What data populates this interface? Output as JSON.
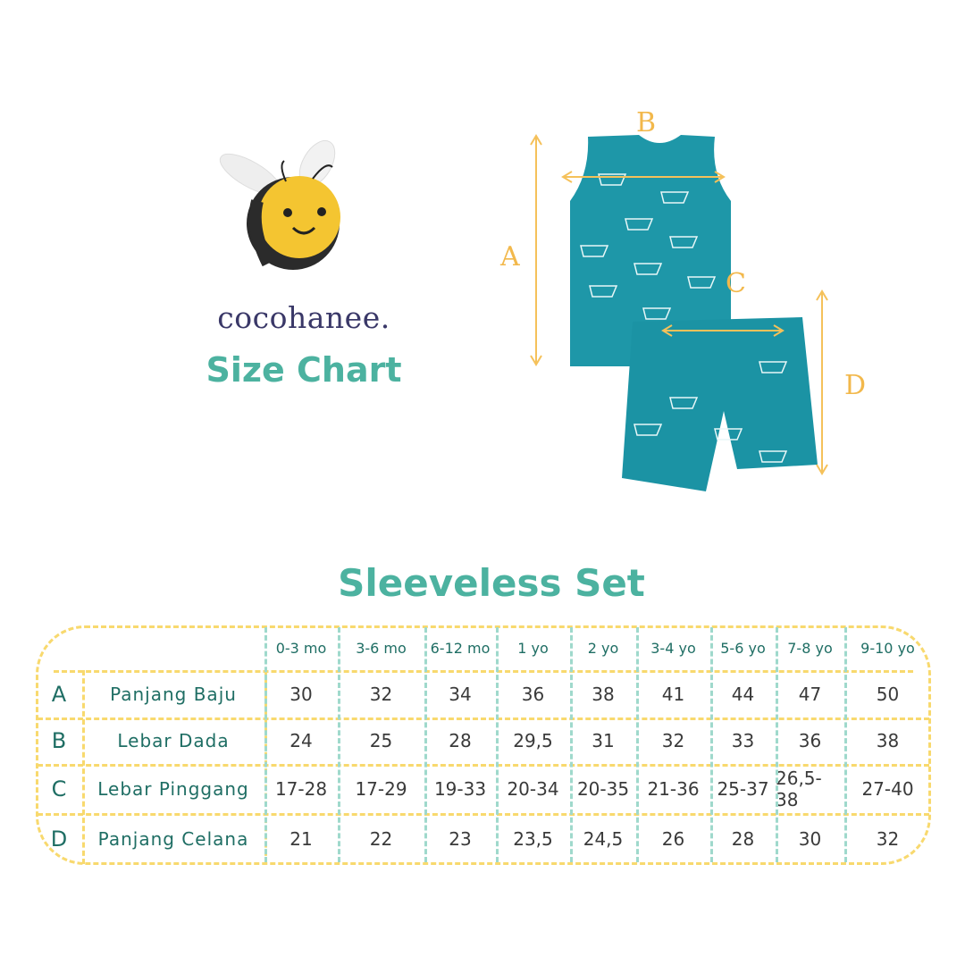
{
  "brand": {
    "logo_text": "cocohanee.",
    "subtitle": "Size Chart"
  },
  "diagram": {
    "labels": {
      "a": "A",
      "b": "B",
      "c": "C",
      "d": "D"
    },
    "garment_color": "#1e97a8",
    "arrow_color": "#f5c15a"
  },
  "table": {
    "title": "Sleeveless Set",
    "sizes": [
      "0-3 mo",
      "3-6 mo",
      "6-12 mo",
      "1 yo",
      "2 yo",
      "3-4 yo",
      "5-6 yo",
      "7-8 yo",
      "9-10 yo"
    ],
    "rows": [
      {
        "letter": "A",
        "label": "Panjang Baju",
        "values": [
          "30",
          "32",
          "34",
          "36",
          "38",
          "41",
          "44",
          "47",
          "50"
        ]
      },
      {
        "letter": "B",
        "label": "Lebar Dada",
        "values": [
          "24",
          "25",
          "28",
          "29,5",
          "31",
          "32",
          "33",
          "36",
          "38"
        ]
      },
      {
        "letter": "C",
        "label": "Lebar Pinggang",
        "values": [
          "17-28",
          "17-29",
          "19-33",
          "20-34",
          "20-35",
          "21-36",
          "25-37",
          "26,5-38",
          "27-40"
        ]
      },
      {
        "letter": "D",
        "label": "Panjang Celana",
        "values": [
          "21",
          "22",
          "23",
          "23,5",
          "24,5",
          "26",
          "28",
          "30",
          "32"
        ]
      }
    ]
  }
}
